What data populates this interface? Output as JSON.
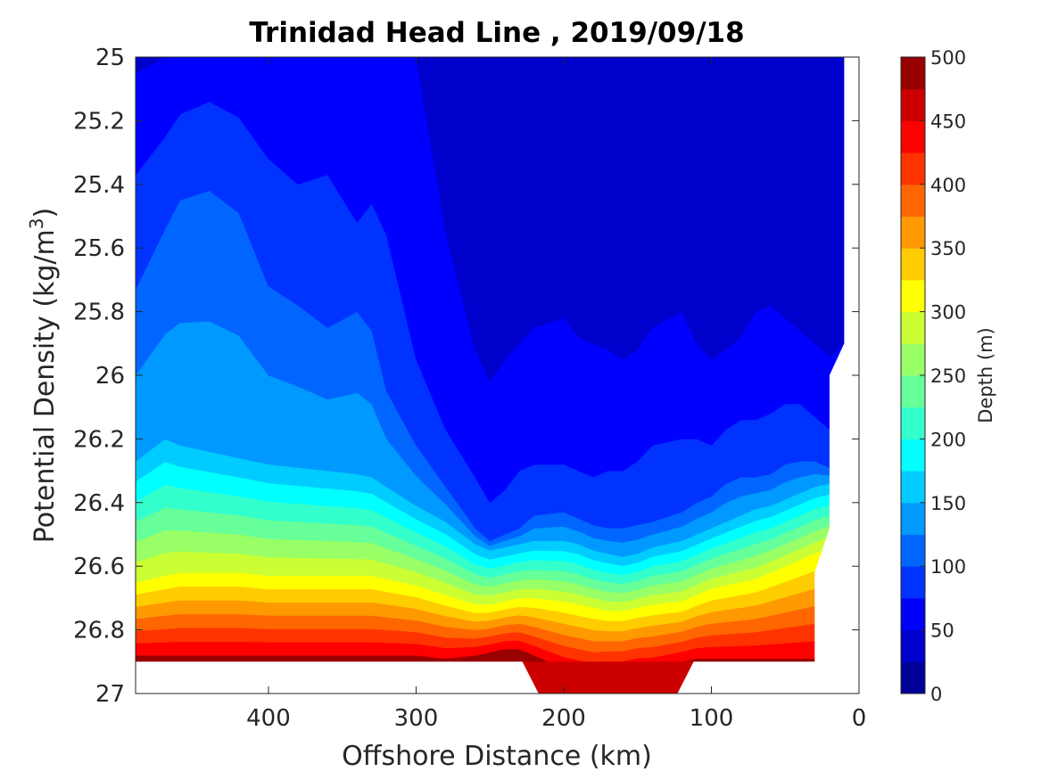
{
  "chart_data": {
    "type": "filled-contour",
    "title": "Trinidad Head Line , 2019/09/18",
    "xlabel": "Offshore Distance (km)",
    "ylabel": "Potential Density (kg/m",
    "ylabel_sup": "3",
    "ylabel_close": ")",
    "xlim": [
      490,
      0
    ],
    "ylim": [
      27,
      25
    ],
    "x_reversed": true,
    "y_reversed": true,
    "xticks": [
      400,
      300,
      200,
      100,
      0
    ],
    "xtick_labels": [
      "400",
      "300",
      "200",
      "100",
      "0"
    ],
    "yticks": [
      25,
      25.2,
      25.4,
      25.6,
      25.8,
      26,
      26.2,
      26.4,
      26.6,
      26.8,
      27
    ],
    "ytick_labels": [
      "25",
      "25.2",
      "25.4",
      "25.6",
      "25.8",
      "26",
      "26.2",
      "26.4",
      "26.6",
      "26.8",
      "27"
    ],
    "colorbar": {
      "label": "Depth (m)",
      "min": 0,
      "max": 500,
      "step": 25,
      "ticks": [
        0,
        50,
        100,
        150,
        200,
        250,
        300,
        350,
        400,
        450,
        500
      ],
      "tick_labels": [
        "0",
        "50",
        "100",
        "150",
        "200",
        "250",
        "300",
        "350",
        "400",
        "450",
        "500"
      ],
      "colormap": "jet"
    },
    "grid": false,
    "contour_levels": [
      0,
      25,
      50,
      75,
      100,
      125,
      150,
      175,
      200,
      225,
      250,
      275,
      300,
      325,
      350,
      375,
      400,
      425,
      450,
      475,
      500
    ],
    "density_at_depth_profiles": {
      "x_km": [
        490,
        470,
        460,
        440,
        420,
        400,
        380,
        360,
        340,
        330,
        320,
        300,
        280,
        260,
        250,
        240,
        230,
        220,
        200,
        190,
        180,
        170,
        160,
        150,
        140,
        120,
        110,
        100,
        90,
        80,
        70,
        60,
        50,
        40,
        30,
        20,
        10
      ],
      "depth_25m": [
        25.0,
        25.0,
        25.0,
        25.0,
        25.0,
        25.0,
        25.0,
        25.0,
        25.0,
        25.0,
        25.0,
        25.0,
        25.0,
        25.0,
        25.0,
        25.0,
        25.0,
        25.0,
        25.0,
        25.0,
        25.0,
        25.0,
        25.0,
        25.0,
        25.0,
        25.0,
        25.0,
        25.0,
        25.0,
        25.0,
        25.0,
        25.0,
        25.0,
        25.0,
        25.0,
        25.0,
        25.0
      ],
      "depth_50m": [
        25.05,
        25.0,
        25.0,
        25.0,
        25.0,
        25.0,
        25.0,
        25.0,
        25.0,
        25.0,
        25.0,
        25.0,
        25.55,
        25.92,
        26.02,
        25.95,
        25.9,
        25.85,
        25.82,
        25.88,
        25.9,
        25.92,
        25.95,
        25.92,
        25.85,
        25.8,
        25.9,
        25.95,
        25.92,
        25.88,
        25.8,
        25.78,
        25.82,
        25.86,
        25.9,
        25.94,
        25.9
      ],
      "depth_75m": [
        25.37,
        25.25,
        25.18,
        25.14,
        25.19,
        25.32,
        25.4,
        25.37,
        25.52,
        25.46,
        25.56,
        25.95,
        26.17,
        26.32,
        26.4,
        26.36,
        26.3,
        26.28,
        26.28,
        26.3,
        26.32,
        26.3,
        26.3,
        26.27,
        26.22,
        26.2,
        26.2,
        26.22,
        26.17,
        26.14,
        26.14,
        26.12,
        26.09,
        26.09,
        26.13,
        26.17,
        26.2
      ],
      "depth_100m": [
        25.73,
        25.54,
        25.45,
        25.42,
        25.49,
        25.72,
        25.78,
        25.85,
        25.8,
        25.86,
        26.05,
        26.22,
        26.35,
        26.48,
        26.52,
        26.5,
        26.48,
        26.44,
        26.43,
        26.45,
        26.47,
        26.48,
        26.48,
        26.47,
        26.46,
        26.43,
        26.4,
        26.38,
        26.34,
        26.32,
        26.32,
        26.31,
        26.28,
        26.27,
        26.27,
        26.29,
        26.3
      ],
      "depth_150m": [
        26.27,
        26.2,
        26.22,
        26.24,
        26.26,
        26.28,
        26.29,
        26.3,
        26.31,
        26.32,
        26.35,
        26.41,
        26.46,
        26.53,
        26.55,
        26.54,
        26.53,
        26.52,
        26.52,
        26.53,
        26.55,
        26.56,
        26.57,
        26.56,
        26.54,
        26.52,
        26.5,
        26.48,
        26.46,
        26.44,
        26.42,
        26.41,
        26.39,
        26.37,
        26.35,
        26.34,
        26.33
      ],
      "depth_300m": [
        26.65,
        26.63,
        26.62,
        26.62,
        26.62,
        26.63,
        26.63,
        26.63,
        26.63,
        26.63,
        26.64,
        26.66,
        26.69,
        26.72,
        26.72,
        26.71,
        26.7,
        26.7,
        26.71,
        26.72,
        26.73,
        26.74,
        26.74,
        26.73,
        26.72,
        26.71,
        26.69,
        26.67,
        26.66,
        26.65,
        26.64,
        26.62,
        26.6,
        26.58,
        26.56,
        26.54,
        26.52
      ],
      "depth_450m": [
        26.88,
        26.88,
        26.88,
        26.88,
        26.88,
        26.88,
        26.88,
        26.88,
        26.88,
        26.88,
        26.88,
        26.88,
        26.89,
        26.88,
        26.87,
        26.86,
        26.86,
        26.88,
        26.92,
        26.93,
        26.94,
        26.93,
        26.93,
        26.92,
        26.92,
        26.9,
        26.89,
        26.89,
        26.89,
        26.89,
        26.89,
        26.89,
        26.89,
        26.89,
        26.89,
        26.89,
        26.89
      ]
    },
    "deep_bottom_pocket_km": [
      220,
      120
    ],
    "nan_mask_notes": "white area below sigma 26.9 except between about 215 and 120 km; white wedge near coast for x below about 20 km"
  }
}
